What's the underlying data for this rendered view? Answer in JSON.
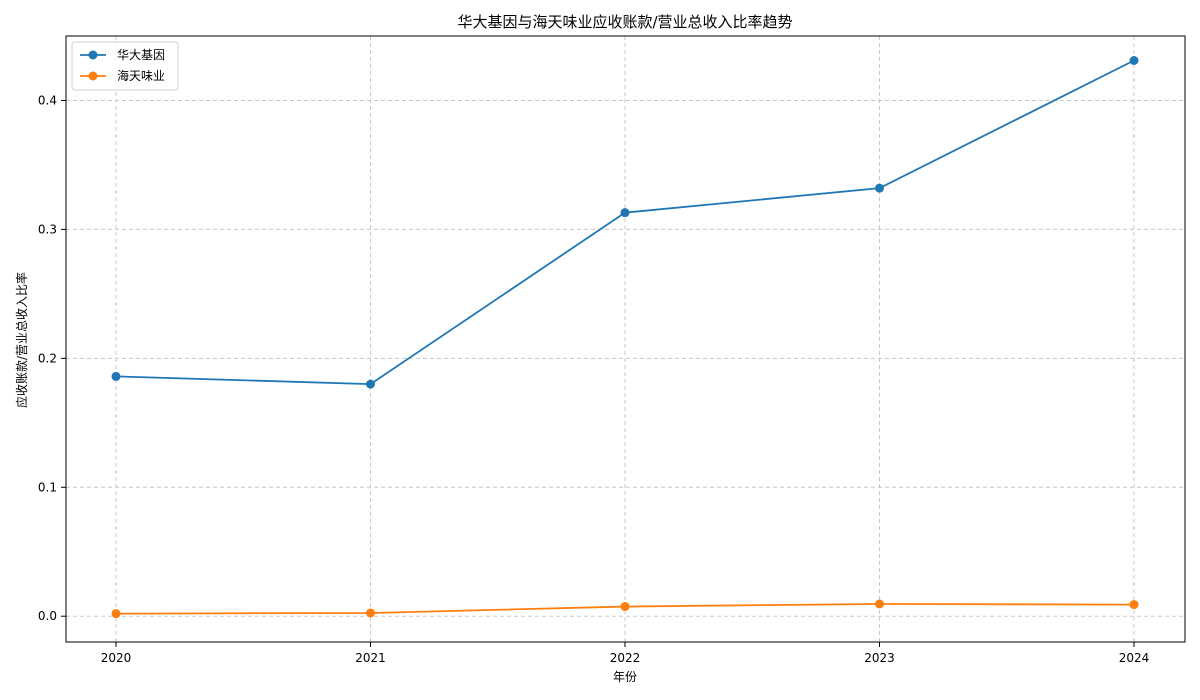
{
  "chart_data": {
    "type": "line",
    "title": "华大基因与海天味业应收账款/营业总收入比率趋势",
    "xlabel": "年份",
    "ylabel": "应收账款/营业总收入比率",
    "categories": [
      "2020",
      "2021",
      "2022",
      "2023",
      "2024"
    ],
    "ylim": [
      -0.02,
      0.45
    ],
    "yticks": [
      0.0,
      0.1,
      0.2,
      0.3,
      0.4
    ],
    "ytick_labels": [
      "0.0",
      "0.1",
      "0.2",
      "0.3",
      "0.4"
    ],
    "grid": true,
    "legend_position": "top-left",
    "series": [
      {
        "name": "华大基因",
        "color": "#1f77b4",
        "values": [
          0.186,
          0.18,
          0.313,
          0.332,
          0.431
        ]
      },
      {
        "name": "海天味业",
        "color": "#ff7f0e",
        "values": [
          0.002,
          0.0025,
          0.0075,
          0.0095,
          0.009
        ]
      }
    ]
  }
}
